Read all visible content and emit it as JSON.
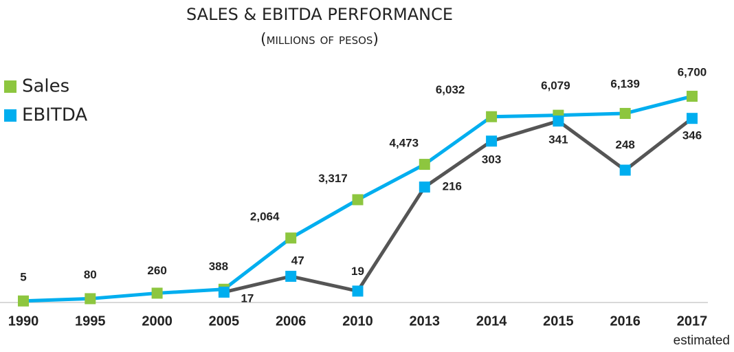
{
  "chart_data": {
    "type": "line",
    "title": "SALES & EBITDA PERFORMANCE",
    "subtitle": "(millions of pesos)",
    "annotations": [
      "estimated"
    ],
    "categories": [
      "1990",
      "1995",
      "2000",
      "2005",
      "2006",
      "2010",
      "2013",
      "2014",
      "2015",
      "2016",
      "2017"
    ],
    "ylim": [
      0,
      7600
    ],
    "y2lim": [
      0,
      440
    ],
    "legend": "top-left",
    "series": [
      {
        "name": "Sales",
        "color": "#8dc63f",
        "line_color": "#00aeef",
        "values": [
          5,
          80,
          260,
          388,
          2064,
          3317,
          4473,
          6032,
          6079,
          6139,
          6700
        ],
        "value_labels": [
          "5",
          "80",
          "260",
          "388",
          "2,064",
          "3,317",
          "4,473",
          "6,032",
          "6,079",
          "6,139",
          "6,700"
        ]
      },
      {
        "name": "EBITDA",
        "color": "#00aeef",
        "line_color": "#555555",
        "axis": "y2",
        "values": [
          null,
          null,
          null,
          17,
          47,
          19,
          216,
          303,
          341,
          248,
          346
        ]
      }
    ]
  }
}
